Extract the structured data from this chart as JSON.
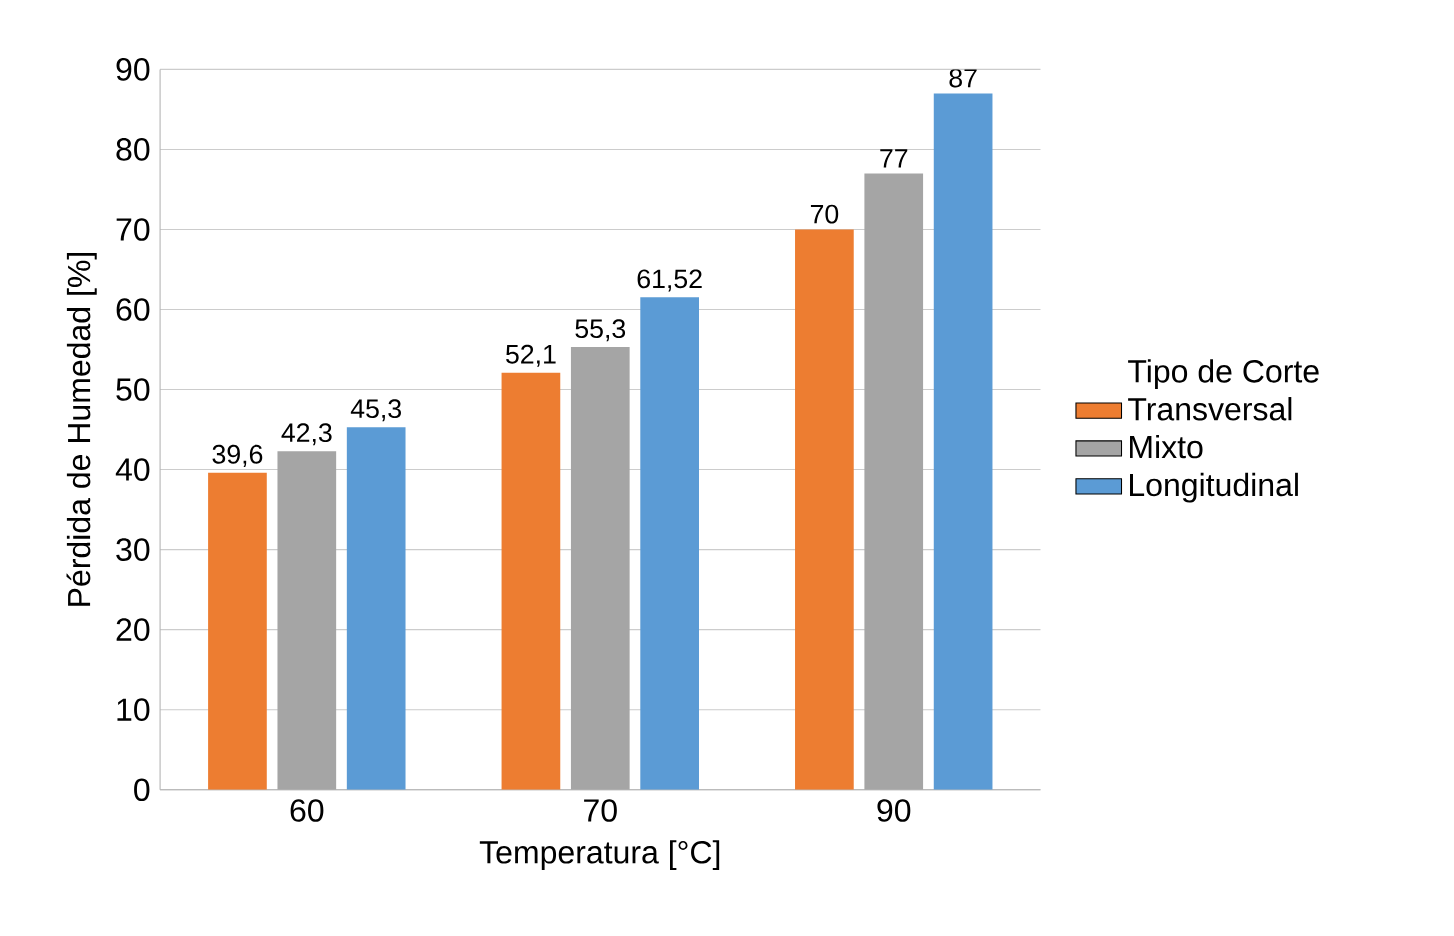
{
  "chart_data": {
    "type": "bar",
    "xlabel": "Temperatura [°C]",
    "ylabel": "Pérdida de Humedad [%]",
    "legend_title": "Tipo de Corte",
    "categories": [
      "60",
      "70",
      "90"
    ],
    "ylim": [
      0,
      90
    ],
    "yticks": [
      0,
      10,
      20,
      30,
      40,
      50,
      60,
      70,
      80,
      90
    ],
    "grid": "y",
    "legend": "right",
    "series": [
      {
        "name": "Transversal",
        "color": "#ed7d31",
        "values": [
          39.6,
          52.1,
          70
        ],
        "value_labels": [
          "39,6",
          "52,1",
          "70"
        ]
      },
      {
        "name": "Mixto",
        "color": "#a5a5a5",
        "values": [
          42.3,
          55.3,
          77
        ],
        "value_labels": [
          "42,3",
          "55,3",
          "77"
        ]
      },
      {
        "name": "Longitudinal",
        "color": "#5b9bd5",
        "values": [
          45.3,
          61.52,
          87
        ],
        "value_labels": [
          "45,3",
          "61,52",
          "87"
        ]
      }
    ]
  }
}
